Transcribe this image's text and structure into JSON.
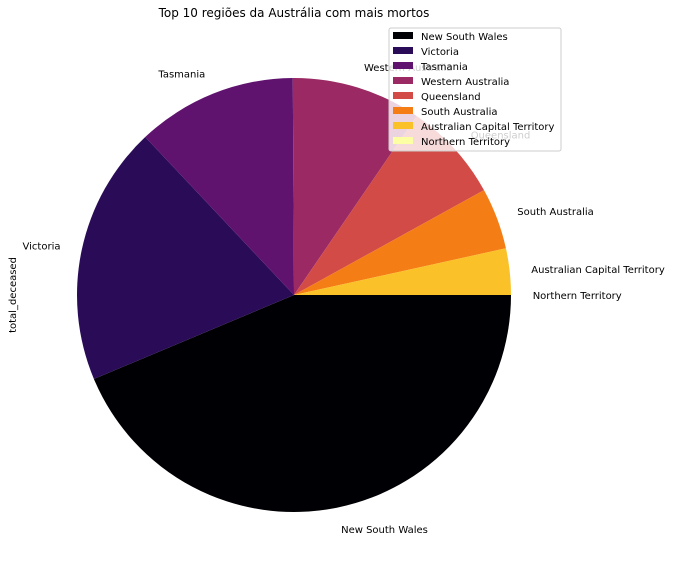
{
  "chart_data": {
    "type": "pie",
    "title": "Top 10 regiões da Austrália com mais mortos",
    "ylabel": "total_deceased",
    "legend_position": "top-right",
    "start_angle_deg": 0,
    "direction": "clockwise",
    "slices": [
      {
        "label": "New South Wales",
        "value": 43.0,
        "color": "#000004"
      },
      {
        "label": "Victoria",
        "value": 19.0,
        "color": "#2a0b57"
      },
      {
        "label": "Tasmania",
        "value": 11.75,
        "color": "#5f126e"
      },
      {
        "label": "Western Australia",
        "value": 9.5,
        "color": "#9b2964"
      },
      {
        "label": "Queensland",
        "value": 7.3,
        "color": "#d34b46"
      },
      {
        "label": "South Australia",
        "value": 4.5,
        "color": "#f57d15"
      },
      {
        "label": "Australian Capital Territory",
        "value": 3.4,
        "color": "#fac228"
      },
      {
        "label": "Northern Territory",
        "value": 0.0,
        "color": "#fcffa4"
      }
    ]
  }
}
